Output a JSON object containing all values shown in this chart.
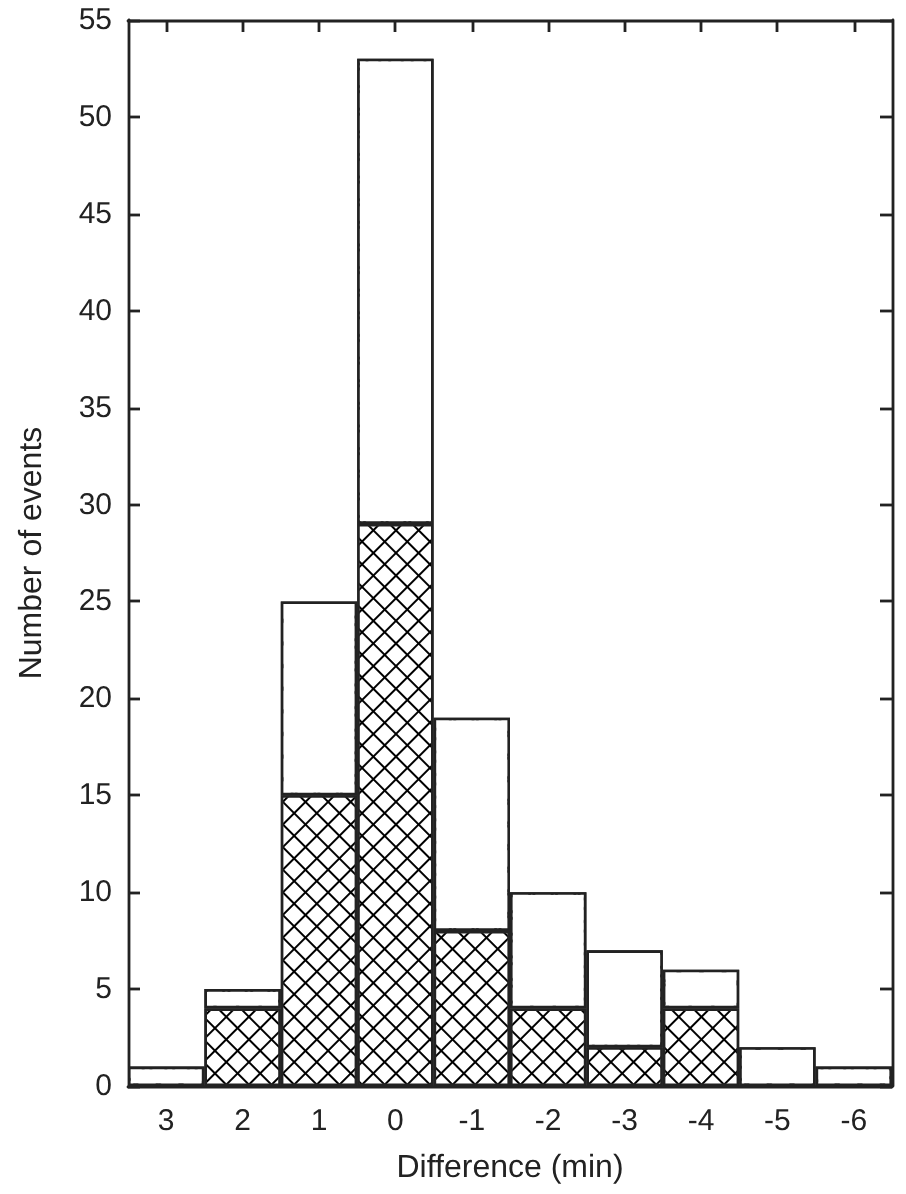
{
  "chart_data": {
    "type": "bar",
    "xlabel": "Difference (min)",
    "ylabel": "Number of events",
    "categories": [
      "3",
      "2",
      "1",
      "0",
      "-1",
      "-2",
      "-3",
      "-4",
      "-5",
      "-6"
    ],
    "stacked": true,
    "series": [
      {
        "color": "#000000",
        "values": [
          0,
          4,
          15,
          29,
          8,
          4,
          2,
          4,
          0,
          0
        ]
      },
      {
        "color": "#ffffff",
        "values": [
          1,
          1,
          10,
          24,
          11,
          6,
          5,
          2,
          2,
          1
        ]
      }
    ],
    "ylim": [
      0,
      55
    ],
    "yticks": [
      0,
      5,
      10,
      15,
      20,
      25,
      30,
      35,
      40,
      45,
      50,
      55
    ]
  }
}
